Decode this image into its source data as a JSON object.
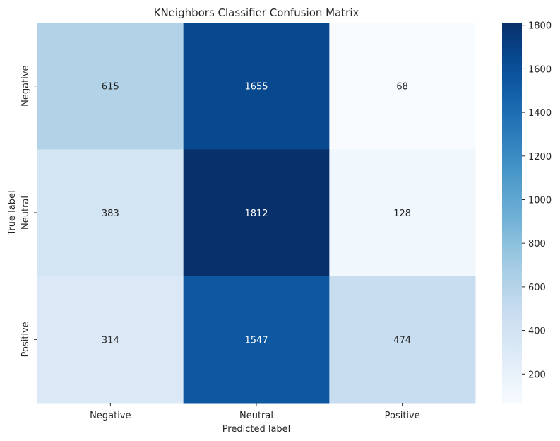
{
  "chart_data": {
    "type": "heatmap",
    "title": "KNeighbors Classifier Confusion Matrix",
    "xlabel": "Predicted label",
    "ylabel": "True label",
    "x_categories": [
      "Negative",
      "Neutral",
      "Positive"
    ],
    "y_categories": [
      "Negative",
      "Neutral",
      "Positive"
    ],
    "values": [
      [
        615,
        1655,
        68
      ],
      [
        383,
        1812,
        128
      ],
      [
        314,
        1547,
        474
      ]
    ],
    "colormap": "Blues",
    "colorbar": {
      "range": [
        68,
        1812
      ],
      "ticks": [
        200,
        400,
        600,
        800,
        1000,
        1200,
        1400,
        1600,
        1800
      ]
    }
  }
}
